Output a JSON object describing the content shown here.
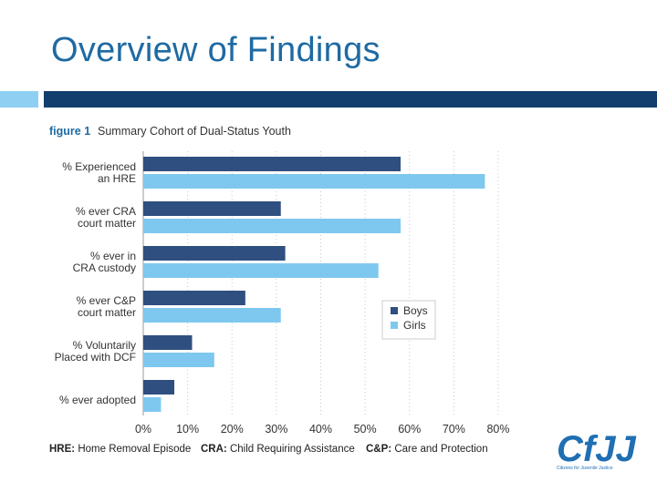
{
  "slide": {
    "title": "Overview of Findings"
  },
  "colors": {
    "title": "#1e6aa3",
    "accent_light": "#8fd0f2",
    "accent_dark": "#123e6e",
    "boys": "#2f4f80",
    "girls": "#7ec8f0"
  },
  "chart_data": {
    "type": "bar",
    "orientation": "horizontal",
    "figure_label": "figure 1",
    "title": "Summary Cohort of Dual-Status Youth",
    "categories": [
      [
        "% Experienced",
        "an HRE"
      ],
      [
        "% ever CRA",
        "court matter"
      ],
      [
        "% ever in",
        "CRA custody"
      ],
      [
        "% ever C&P",
        "court matter"
      ],
      [
        "% Voluntarily",
        "Placed with DCF"
      ],
      [
        "% ever adopted"
      ]
    ],
    "series": [
      {
        "name": "Boys",
        "values": [
          58,
          31,
          32,
          23,
          11,
          7
        ]
      },
      {
        "name": "Girls",
        "values": [
          77,
          58,
          53,
          31,
          16,
          4
        ]
      }
    ],
    "xlim": [
      0,
      80
    ],
    "xticks": [
      "0%",
      "10%",
      "20%",
      "30%",
      "40%",
      "50%",
      "60%",
      "70%",
      "80%"
    ],
    "grid": "vertical dotted",
    "legend_position": "right",
    "footnotes": [
      {
        "abbr": "HRE:",
        "text": "Home Removal Episode"
      },
      {
        "abbr": "CRA:",
        "text": "Child Requiring Assistance"
      },
      {
        "abbr": "C&P:",
        "text": "Care and Protection"
      }
    ]
  },
  "logo": {
    "text": "CfJJ",
    "tagline": "Citizens for Juvenile Justice",
    "color": "#1f6fb3"
  }
}
